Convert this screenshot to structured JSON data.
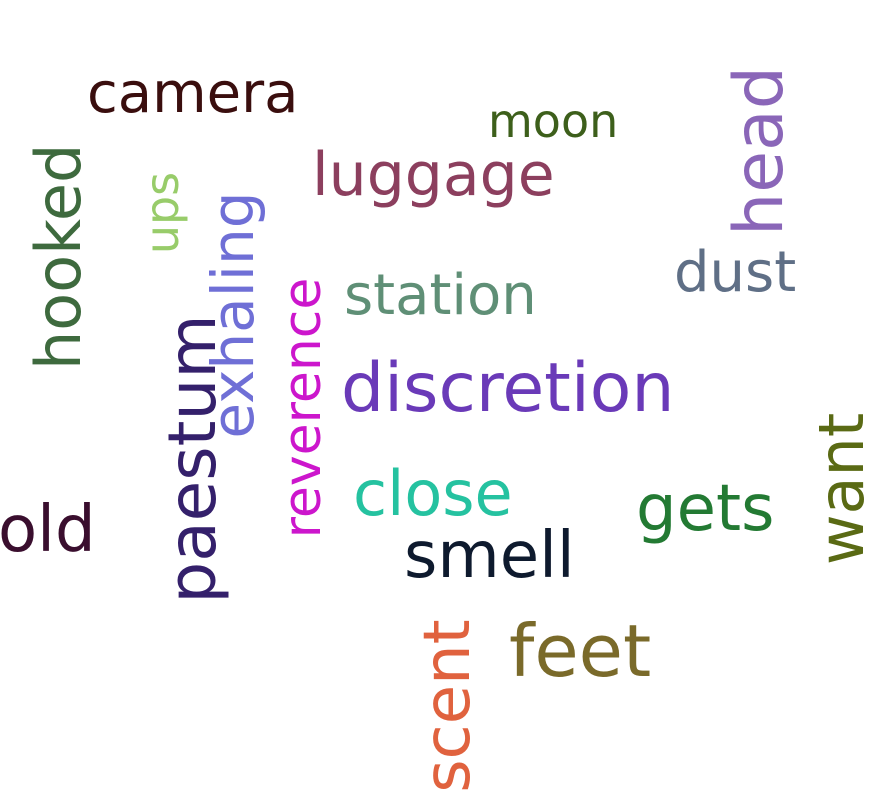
{
  "words": [
    {
      "key": "camera",
      "text": "camera",
      "color": "#3a0e0e"
    },
    {
      "key": "moon",
      "text": "moon",
      "color": "#3d5f1b"
    },
    {
      "key": "head",
      "text": "head",
      "color": "#8a66b8"
    },
    {
      "key": "luggage",
      "text": "luggage",
      "color": "#8c3f5e"
    },
    {
      "key": "hooked",
      "text": "hooked",
      "color": "#3e6a3e"
    },
    {
      "key": "ups",
      "text": "ups",
      "color": "#98cc6a"
    },
    {
      "key": "exhaling",
      "text": "exhaling",
      "color": "#6f6fd6"
    },
    {
      "key": "reverence",
      "text": "reverence",
      "color": "#cc16cc"
    },
    {
      "key": "station",
      "text": "station",
      "color": "#5f8f76"
    },
    {
      "key": "dust",
      "text": "dust",
      "color": "#5f6f86"
    },
    {
      "key": "paestum",
      "text": "paestum",
      "color": "#34206b"
    },
    {
      "key": "discretion",
      "text": "discretion",
      "color": "#6a3ab8"
    },
    {
      "key": "gets",
      "text": "gets",
      "color": "#237a33"
    },
    {
      "key": "want",
      "text": "want",
      "color": "#5a6a14"
    },
    {
      "key": "old",
      "text": "old",
      "color": "#3a0e2e"
    },
    {
      "key": "close",
      "text": "close",
      "color": "#25c2a0"
    },
    {
      "key": "smell",
      "text": "smell",
      "color": "#0e1a2e"
    },
    {
      "key": "feet",
      "text": "feet",
      "color": "#7a6a2a"
    },
    {
      "key": "scent",
      "text": "scent",
      "color": "#e0623e"
    }
  ]
}
